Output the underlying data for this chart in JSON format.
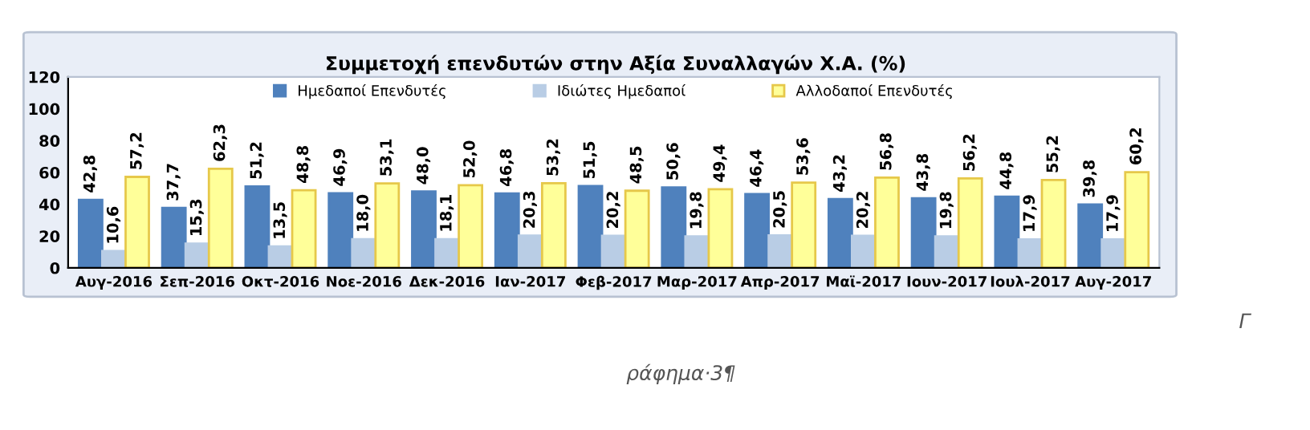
{
  "chart_data": {
    "type": "bar",
    "title": "Συμμετοχή επενδυτών στην Αξία Συναλλαγών Χ.Α. (%)",
    "categories": [
      "Αυγ-2016",
      "Σεπ-2016",
      "Οκτ-2016",
      "Νοε-2016",
      "Δεκ-2016",
      "Ιαν-2017",
      "Φεβ-2017",
      "Μαρ-2017",
      "Απρ-2017",
      "Μαϊ-2017",
      "Ιουν-2017",
      "Ιουλ-2017",
      "Αυγ-2017"
    ],
    "series": [
      {
        "name": "Ημεδαποί Επενδυτές",
        "color": "#4f81bd",
        "values": [
          42.8,
          37.7,
          51.2,
          46.9,
          48.0,
          46.8,
          51.5,
          50.6,
          46.4,
          43.2,
          43.8,
          44.8,
          39.8
        ],
        "value_labels": [
          "42,8",
          "37,7",
          "51,2",
          "46,9",
          "48,0",
          "46,8",
          "51,5",
          "50,6",
          "46,4",
          "43,2",
          "43,8",
          "44,8",
          "39,8"
        ]
      },
      {
        "name": "Ιδιώτες Ημεδαποί",
        "color": "#b9cde5",
        "values": [
          10.6,
          15.3,
          13.5,
          18.0,
          18.1,
          20.3,
          20.2,
          19.8,
          20.5,
          20.2,
          19.8,
          17.9,
          17.9
        ],
        "value_labels": [
          "10,6",
          "15,3",
          "13,5",
          "18,0",
          "18,1",
          "20,3",
          "20,2",
          "19,8",
          "20,5",
          "20,2",
          "19,8",
          "17,9",
          "17,9"
        ]
      },
      {
        "name": "Αλλοδαποί Επενδυτές",
        "color": "#ffff99",
        "values": [
          57.2,
          62.3,
          48.8,
          53.1,
          52.0,
          53.2,
          48.5,
          49.4,
          53.6,
          56.8,
          56.2,
          55.2,
          60.2
        ],
        "value_labels": [
          "57,2",
          "62,3",
          "48,8",
          "53,1",
          "52,0",
          "53,2",
          "48,5",
          "49,4",
          "53,6",
          "56,8",
          "56,2",
          "55,2",
          "60,2"
        ]
      }
    ],
    "ylim": [
      0,
      120
    ],
    "yticks": [
      0,
      20,
      40,
      60,
      80,
      100,
      120
    ],
    "grid": false,
    "legend": "top",
    "annotations": [
      "Γ",
      "ράφημα·3¶"
    ]
  }
}
